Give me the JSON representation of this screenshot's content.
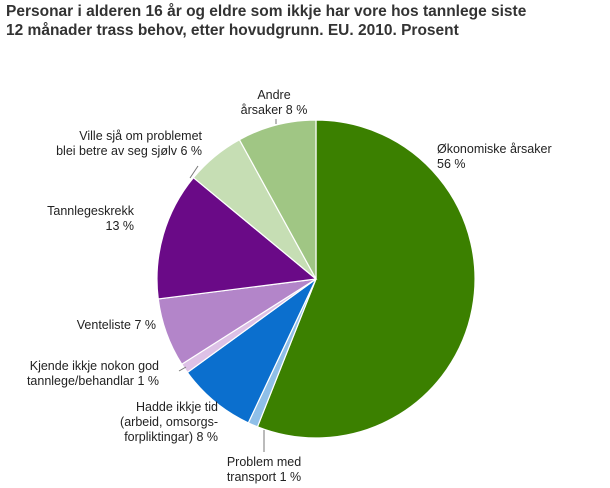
{
  "title_lines": [
    "Personar i alderen 16 år og eldre som ikkje har vore hos tannlege siste",
    "12 månader trass behov, etter hovudgrunn. EU. 2010. Prosent"
  ],
  "chart_data": {
    "type": "pie",
    "title": "Personar i alderen 16 år og eldre som ikkje har vore hos tannlege siste 12 månader trass behov, etter hovudgrunn. EU. 2010. Prosent",
    "unit": "Prosent",
    "slices": [
      {
        "label_lines": [
          "Økonomiske årsaker",
          "56 %"
        ],
        "value": 56,
        "color": "#3b8000"
      },
      {
        "label_lines": [
          "Problem med",
          "transport 1 %"
        ],
        "value": 1,
        "color": "#8fbfe8"
      },
      {
        "label_lines": [
          "Hadde ikkje tid",
          "(arbeid, omsorgs-",
          "forpliktingar) 8 %"
        ],
        "value": 8,
        "color": "#0b6fce"
      },
      {
        "label_lines": [
          "Kjende ikkje nokon god",
          "tannlege/behandlar 1 %"
        ],
        "value": 1,
        "color": "#ddc1e6"
      },
      {
        "label_lines": [
          "Venteliste 7 %"
        ],
        "value": 7,
        "color": "#b385c9"
      },
      {
        "label_lines": [
          "Tannlegeskrekk",
          "13 %"
        ],
        "value": 13,
        "color": "#6a0a87"
      },
      {
        "label_lines": [
          "Ville sjå om problemet",
          "blei betre av seg sjølv 6 %"
        ],
        "value": 6,
        "color": "#c6deb4"
      },
      {
        "label_lines": [
          "Andre",
          "årsaker 8 %"
        ],
        "value": 8,
        "color": "#a0c684"
      }
    ],
    "legend": "none"
  }
}
